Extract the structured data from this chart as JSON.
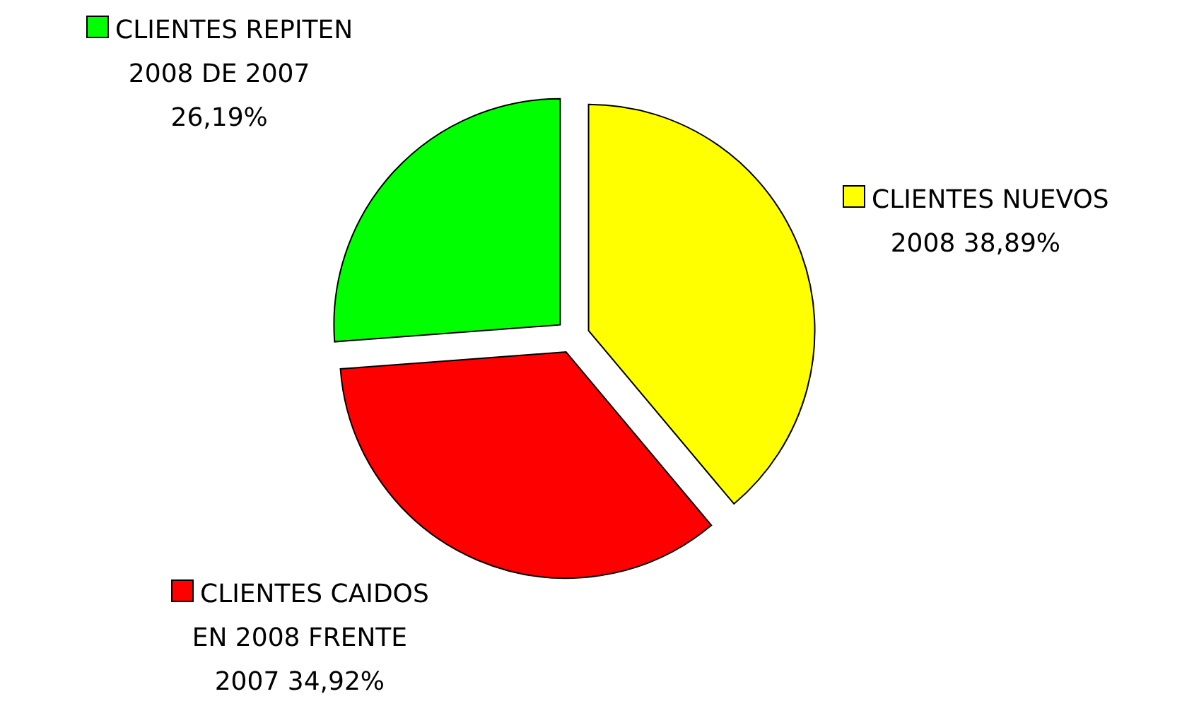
{
  "chart_data": {
    "type": "pie",
    "categories": [
      "CLIENTES NUEVOS 2008",
      "CLIENTES CAIDOS EN 2008 FRENTE 2007",
      "CLIENTES REPITEN 2008 DE 2007"
    ],
    "values": [
      38.89,
      34.92,
      26.19
    ],
    "value_labels": [
      "38,89%",
      "34,92%",
      "26,19%"
    ],
    "colors": [
      "#ffff00",
      "#ff0000",
      "#00ff00"
    ],
    "legend": "right"
  }
}
